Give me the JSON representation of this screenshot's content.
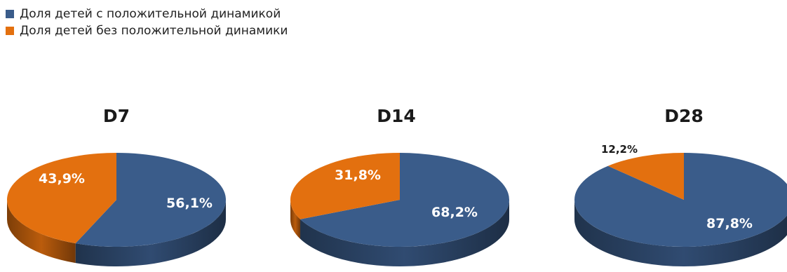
{
  "legend": {
    "items": [
      {
        "label": "Доля детей  с положительной динамикой",
        "color": "#3A5C8A"
      },
      {
        "label": "Доля детей без положительной динамики",
        "color": "#E3700F"
      }
    ]
  },
  "chart_data": [
    {
      "type": "pie",
      "title": "D7",
      "slices": [
        {
          "series": "Доля детей  с положительной динамикой",
          "value": 56.1,
          "label": "56,1%"
        },
        {
          "series": "Доля детей без положительной динамики",
          "value": 43.9,
          "label": "43,9%"
        }
      ]
    },
    {
      "type": "pie",
      "title": "D14",
      "slices": [
        {
          "series": "Доля детей  с положительной динамикой",
          "value": 68.2,
          "label": "68,2%"
        },
        {
          "series": "Доля детей без положительной динамики",
          "value": 31.8,
          "label": "31,8%"
        }
      ]
    },
    {
      "type": "pie",
      "title": "D28",
      "slices": [
        {
          "series": "Доля детей  с положительной динамикой",
          "value": 87.8,
          "label": "87,8%"
        },
        {
          "series": "Доля детей без положительной динамики",
          "value": 12.2,
          "label": "12,2%"
        }
      ]
    }
  ]
}
